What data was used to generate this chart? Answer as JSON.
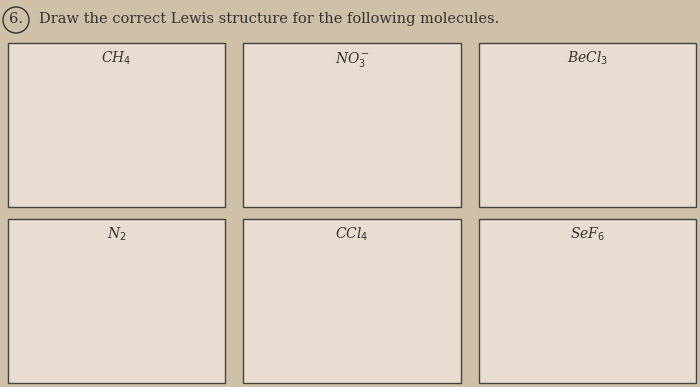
{
  "title": "Draw the correct Lewis structure for the following molecules.",
  "background_color": "#cfc0a8",
  "box_facecolor": "#e8ddd0",
  "box_edge_color": "#444444",
  "text_color": "#333333",
  "title_fontsize": 10.5,
  "label_fontsize": 10,
  "boxes": [
    {
      "label": "CH$_4$",
      "row": 0,
      "col": 0
    },
    {
      "label": "NO$_3^-$",
      "row": 0,
      "col": 1
    },
    {
      "label": "BeCl$_3$",
      "row": 0,
      "col": 2
    },
    {
      "label": "N$_2$",
      "row": 1,
      "col": 0
    },
    {
      "label": "CCl$_4$",
      "row": 1,
      "col": 1
    },
    {
      "label": "SeF$_6$",
      "row": 1,
      "col": 2
    }
  ],
  "num_rows": 2,
  "num_cols": 3,
  "fig_width": 7.0,
  "fig_height": 3.87
}
